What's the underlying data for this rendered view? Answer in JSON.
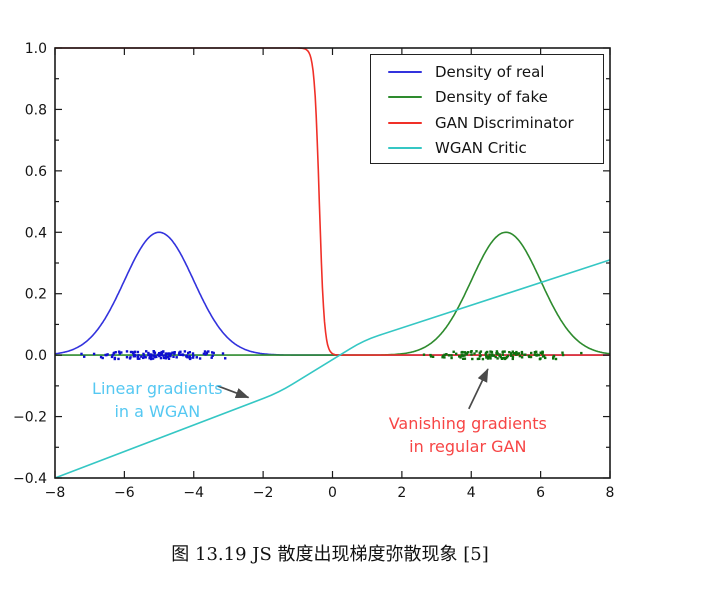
{
  "figure": {
    "caption": "图 13.19 JS 散度出现梯度弥散现象 [5]"
  },
  "chart_data": {
    "type": "line",
    "title": "",
    "xlabel": "",
    "ylabel": "",
    "xlim": [
      -8,
      8
    ],
    "ylim": [
      -0.4,
      1.0
    ],
    "grid": false,
    "x_tick_values": [
      -8,
      -6,
      -4,
      -2,
      0,
      2,
      4,
      6,
      8
    ],
    "x_tick_labels": [
      "−8",
      "−6",
      "−4",
      "−2",
      "0",
      "2",
      "4",
      "6",
      "8"
    ],
    "y_tick_values": [
      1.0,
      0.8,
      0.6,
      0.4,
      0.2,
      0.0,
      -0.2,
      -0.4
    ],
    "y_tick_labels": [
      "1.0",
      "0.8",
      "0.6",
      "0.4",
      "0.2",
      "0.0",
      "−0.2",
      "−0.4"
    ],
    "y_minor_tick_step": 0.1,
    "legend": {
      "position": "upper right"
    },
    "series": [
      {
        "name": "Density of real",
        "type": "gaussian",
        "mean": -5,
        "std": 1,
        "amplitude": 0.4,
        "color": "#3333dd"
      },
      {
        "name": "Density of fake",
        "type": "gaussian",
        "mean": 5,
        "std": 1,
        "amplitude": 0.4,
        "color": "#2e8b2e"
      },
      {
        "name": "GAN Discriminator",
        "type": "sigmoid",
        "center": -0.38,
        "steepness": 14,
        "low": 0,
        "high": 1,
        "color": "#f03028"
      },
      {
        "name": "WGAN Critic",
        "type": "polyline",
        "points": [
          [
            -8,
            -0.4
          ],
          [
            -1.55,
            -0.122
          ],
          [
            0.9,
            0.048
          ],
          [
            8,
            0.31
          ]
        ],
        "color": "#35c7c4"
      }
    ],
    "scatter": [
      {
        "name": "real samples",
        "center": -5,
        "std": 0.95,
        "count": 130,
        "y_jitter": 0.013,
        "clip_sigma": 2.5,
        "color": "#0f0fd0",
        "seed": 42
      },
      {
        "name": "fake samples",
        "center": 5,
        "std": 0.95,
        "count": 130,
        "y_jitter": 0.013,
        "clip_sigma": 2.5,
        "color": "#0e6f0e",
        "seed": 1999
      }
    ],
    "annotations": [
      {
        "lines": [
          "Linear gradients",
          "in a WGAN"
        ],
        "color": "#55c8f2",
        "text_x": -5.05,
        "text_y": -0.11,
        "arrow": {
          "from": [
            -3.32,
            -0.1
          ],
          "to": [
            -2.42,
            -0.138
          ],
          "color": "#4a4a4a"
        }
      },
      {
        "lines": [
          "Vanishing gradients",
          "in regular GAN"
        ],
        "color": "#f74545",
        "text_x": 3.9,
        "text_y": -0.224,
        "arrow": {
          "from": [
            3.93,
            -0.175
          ],
          "to": [
            4.48,
            -0.045
          ],
          "color": "#4a4a4a"
        }
      }
    ]
  }
}
